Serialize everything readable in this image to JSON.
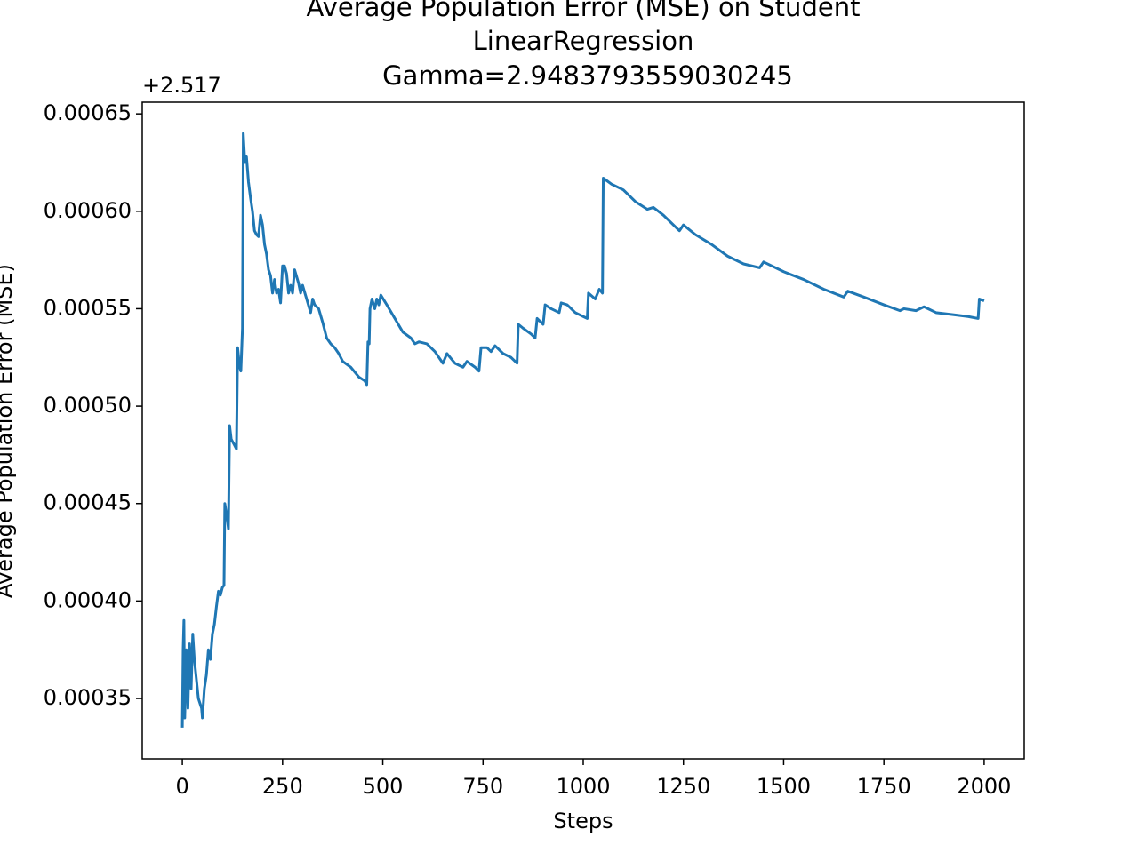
{
  "chart_data": {
    "type": "line",
    "title": [
      "Average Population Error (MSE) on Student",
      "LinearRegression",
      "Gamma=2.9483793559030245"
    ],
    "x_label": "Steps",
    "y_label": "Average Population Error (MSE)",
    "y_offset": "+2.517",
    "color": "#1f77b4",
    "xlim": [
      -100,
      2100
    ],
    "xticks": [
      0,
      250,
      500,
      750,
      1000,
      1250,
      1500,
      1750,
      2000
    ],
    "ylim": [
      0.000319,
      0.000656
    ],
    "yticks": [
      0.00035,
      {
        "value": 0.0004,
        "label": "0.00040"
      },
      0.00045,
      {
        "value": 0.0005,
        "label": "0.00050"
      },
      0.00055,
      {
        "value": 0.0006,
        "label": "0.00060"
      },
      0.00065
    ],
    "x": [
      0,
      2,
      4,
      6,
      10,
      14,
      18,
      22,
      26,
      30,
      40,
      48,
      50,
      55,
      60,
      65,
      70,
      75,
      80,
      85,
      90,
      95,
      100,
      104,
      106,
      112,
      115,
      118,
      122,
      130,
      135,
      138,
      143,
      146,
      150,
      152,
      156,
      160,
      165,
      170,
      175,
      180,
      185,
      190,
      195,
      200,
      205,
      210,
      215,
      220,
      225,
      230,
      235,
      240,
      245,
      250,
      255,
      260,
      265,
      270,
      275,
      280,
      290,
      295,
      300,
      310,
      320,
      325,
      330,
      340,
      350,
      360,
      370,
      380,
      390,
      400,
      420,
      440,
      455,
      460,
      463,
      466,
      468,
      473,
      480,
      485,
      490,
      495,
      510,
      530,
      550,
      570,
      580,
      590,
      610,
      630,
      650,
      660,
      680,
      700,
      710,
      730,
      740,
      745,
      760,
      770,
      780,
      800,
      820,
      835,
      838,
      850,
      870,
      880,
      885,
      900,
      905,
      920,
      940,
      945,
      960,
      980,
      1000,
      1010,
      1013,
      1030,
      1040,
      1048,
      1050,
      1070,
      1100,
      1130,
      1160,
      1175,
      1200,
      1240,
      1250,
      1280,
      1320,
      1360,
      1400,
      1440,
      1450,
      1500,
      1550,
      1600,
      1650,
      1660,
      1700,
      1750,
      1790,
      1800,
      1830,
      1850,
      1880,
      1920,
      1960,
      1985,
      1988,
      2000
    ],
    "values": [
      0.000335,
      0.000375,
      0.00039,
      0.00034,
      0.000375,
      0.000345,
      0.000378,
      0.000355,
      0.000383,
      0.00037,
      0.00035,
      0.000345,
      0.00034,
      0.000355,
      0.000362,
      0.000375,
      0.00037,
      0.000383,
      0.000388,
      0.000397,
      0.000405,
      0.000403,
      0.000407,
      0.000408,
      0.00045,
      0.000442,
      0.000437,
      0.00049,
      0.000483,
      0.00048,
      0.000478,
      0.00053,
      0.00052,
      0.000518,
      0.00054,
      0.00064,
      0.000625,
      0.000628,
      0.000615,
      0.000607,
      0.0006,
      0.00059,
      0.000588,
      0.000587,
      0.000598,
      0.000593,
      0.000583,
      0.000578,
      0.00057,
      0.000567,
      0.000558,
      0.000565,
      0.000558,
      0.00056,
      0.000553,
      0.000572,
      0.000572,
      0.000568,
      0.000558,
      0.000562,
      0.000558,
      0.00057,
      0.000563,
      0.000558,
      0.000562,
      0.000555,
      0.000548,
      0.000555,
      0.000552,
      0.00055,
      0.000543,
      0.000535,
      0.000532,
      0.00053,
      0.000527,
      0.000523,
      0.00052,
      0.000515,
      0.000513,
      0.000511,
      0.000533,
      0.000532,
      0.00055,
      0.000555,
      0.00055,
      0.000555,
      0.000552,
      0.000557,
      0.000552,
      0.000545,
      0.000538,
      0.000535,
      0.000532,
      0.000533,
      0.000532,
      0.000528,
      0.000522,
      0.000527,
      0.000522,
      0.00052,
      0.000523,
      0.00052,
      0.000518,
      0.00053,
      0.00053,
      0.000528,
      0.000531,
      0.000527,
      0.000525,
      0.000522,
      0.000542,
      0.00054,
      0.000537,
      0.000535,
      0.000545,
      0.000542,
      0.000552,
      0.00055,
      0.000548,
      0.000553,
      0.000552,
      0.000548,
      0.000546,
      0.000545,
      0.000558,
      0.000555,
      0.00056,
      0.000558,
      0.000617,
      0.000614,
      0.000611,
      0.000605,
      0.000601,
      0.000602,
      0.000598,
      0.00059,
      0.000593,
      0.000588,
      0.000583,
      0.000577,
      0.000573,
      0.000571,
      0.000574,
      0.000569,
      0.000565,
      0.00056,
      0.000556,
      0.000559,
      0.000556,
      0.000552,
      0.000549,
      0.00055,
      0.000549,
      0.000551,
      0.000548,
      0.000547,
      0.000546,
      0.000545,
      0.000555,
      0.000554
    ]
  }
}
